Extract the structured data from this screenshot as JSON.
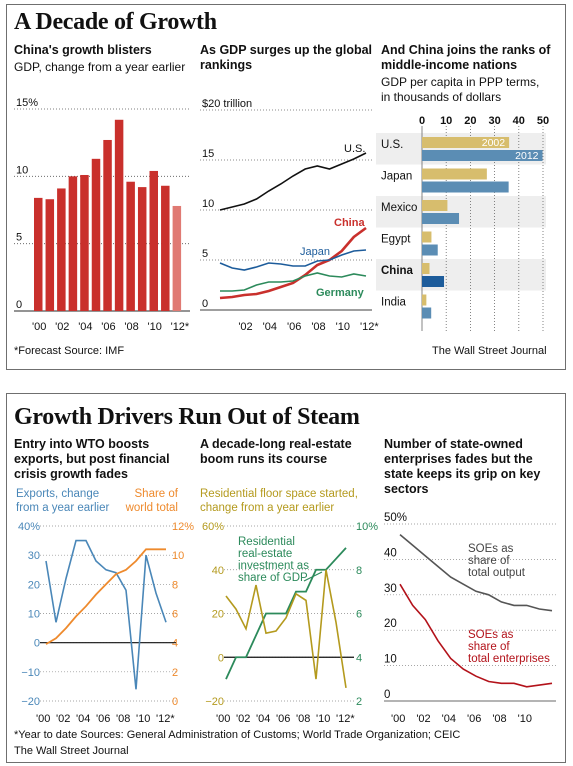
{
  "section1": {
    "title": "A Decade of Growth",
    "source": "*Forecast  Source: IMF",
    "credit": "The Wall Street Journal"
  },
  "section2": {
    "title": "Growth Drivers Run Out of Steam",
    "footnote1": "*Year to date  Sources: General Administration of Customs; World Trade Organization; CEIC",
    "footnote2": "The Wall Street Journal"
  },
  "panels": {
    "p1": {
      "title": "China's growth blisters",
      "subtitle": "GDP, change from a year earlier"
    },
    "p2": {
      "title_l1": "As GDP surges up the global",
      "title_l2": "rankings"
    },
    "p3": {
      "title_l1": "And China joins the ranks of",
      "title_l2": "middle-income nations",
      "sub_l1": "GDP per capita in PPP terms,",
      "sub_l2": "in thousands of dollars"
    },
    "p4": {
      "title_l1": "Entry into WTO boosts",
      "title_l2": "exports, but post financial",
      "title_l3": "crisis growth fades"
    },
    "p5": {
      "title_l1": "A decade-long real-estate",
      "title_l2": "boom runs its course"
    },
    "p6": {
      "title_l1": "Number of state-owned",
      "title_l2": "enterprises fades but the",
      "title_l3": "state keeps its grip on key",
      "title_l4": "sectors"
    }
  },
  "colors": {
    "red": "#c9302c",
    "red_forecast": "#e07a73",
    "gold": "#d7bd6d",
    "steel": "#5b8db4",
    "blue": "#4a87b8",
    "orange": "#ee8a2d",
    "green": "#2c8a5b",
    "olive": "#b49a1e",
    "navy": "#1d5c9b",
    "gray": "#555555",
    "band": "#eeeeee"
  },
  "chart_data": [
    {
      "id": "china-gdp-growth",
      "type": "bar",
      "title": "China's growth blisters",
      "subtitle": "GDP, change from a year earlier",
      "categories": [
        "'00",
        "'01",
        "'02",
        "'03",
        "'04",
        "'05",
        "'06",
        "'07",
        "'08",
        "'09",
        "'10",
        "'11",
        "'12*"
      ],
      "values": [
        8.4,
        8.3,
        9.1,
        10.0,
        10.1,
        11.3,
        12.7,
        14.2,
        9.6,
        9.2,
        10.4,
        9.3,
        7.8
      ],
      "forecast_index": 12,
      "x_tick_labels": [
        "'00",
        "'02",
        "'04",
        "'06",
        "'08",
        "'10",
        "'12*"
      ],
      "y_ticks": [
        0,
        5,
        10,
        15
      ],
      "y_tick_labels": [
        "0",
        "5",
        "10",
        "15%"
      ],
      "ylim": [
        0,
        15
      ]
    },
    {
      "id": "gdp-global-rankings",
      "type": "line",
      "title": "As GDP surges up the global rankings",
      "x": [
        2000,
        2001,
        2002,
        2003,
        2004,
        2005,
        2006,
        2007,
        2008,
        2009,
        2010,
        2011,
        2012
      ],
      "series": [
        {
          "name": "U.S.",
          "values": [
            10.0,
            10.3,
            10.6,
            11.1,
            11.9,
            12.6,
            13.4,
            14.1,
            14.4,
            14.1,
            14.6,
            15.1,
            15.7
          ]
        },
        {
          "name": "China",
          "values": [
            1.2,
            1.3,
            1.5,
            1.6,
            1.9,
            2.3,
            2.7,
            3.5,
            4.5,
            5.0,
            5.9,
            7.3,
            8.2
          ]
        },
        {
          "name": "Japan",
          "values": [
            4.7,
            4.2,
            4.0,
            4.3,
            4.7,
            4.6,
            4.4,
            4.4,
            4.9,
            5.0,
            5.5,
            5.9,
            6.0
          ]
        },
        {
          "name": "Germany",
          "values": [
            1.9,
            1.9,
            2.0,
            2.5,
            2.8,
            2.8,
            2.9,
            3.4,
            3.7,
            3.4,
            3.3,
            3.6,
            3.4
          ]
        }
      ],
      "x_tick_labels": [
        "'02",
        "'04",
        "'06",
        "'08",
        "'10",
        "'12*"
      ],
      "x_tick_values": [
        2002,
        2004,
        2006,
        2008,
        2010,
        2012
      ],
      "y_ticks": [
        0,
        5,
        10,
        15,
        20
      ],
      "y_tick_labels": [
        "0",
        "5",
        "10",
        "15",
        "$20 trillion"
      ],
      "ylim": [
        0,
        20
      ]
    },
    {
      "id": "gdp-per-capita-ppp",
      "type": "bar",
      "orientation": "horizontal",
      "title": "And China joins the ranks of middle-income nations",
      "subtitle": "GDP per capita in PPP terms, in thousands of dollars",
      "categories": [
        "U.S.",
        "Japan",
        "Mexico",
        "Egypt",
        "China",
        "India"
      ],
      "series": [
        {
          "name": "2002",
          "values": [
            36.0,
            26.8,
            10.5,
            3.9,
            3.1,
            1.8
          ]
        },
        {
          "name": "2012",
          "values": [
            49.8,
            35.8,
            15.3,
            6.5,
            9.1,
            3.8
          ]
        }
      ],
      "x_ticks": [
        0,
        10,
        20,
        30,
        40,
        50
      ],
      "xlim": [
        0,
        52
      ]
    },
    {
      "id": "exports-wto",
      "type": "line",
      "title": "Entry into WTO boosts exports, but post financial crisis growth fades",
      "x": [
        2000,
        2001,
        2002,
        2003,
        2004,
        2005,
        2006,
        2007,
        2008,
        2009,
        2010,
        2011,
        2012
      ],
      "series": [
        {
          "name": "Exports, change from a year earlier",
          "axis": "left",
          "values": [
            28,
            7,
            22,
            35,
            35,
            28,
            25,
            24,
            18,
            -16,
            30,
            17,
            7
          ]
        },
        {
          "name": "Share of world total",
          "axis": "right",
          "values": [
            3.9,
            4.3,
            5.0,
            5.8,
            6.5,
            7.3,
            8.0,
            8.7,
            9.0,
            9.6,
            10.4,
            10.4,
            10.4
          ]
        }
      ],
      "left_label": "Exports, change from a year earlier",
      "right_label_l1": "Share of",
      "right_label_l2": "world total",
      "y_left_ticks": [
        -20,
        -10,
        0,
        10,
        20,
        30,
        40
      ],
      "y_left_tick_labels": [
        "−20",
        "−10",
        "0",
        "10",
        "20",
        "30",
        "40%"
      ],
      "ylim_left": [
        -20,
        40
      ],
      "y_right_ticks": [
        0,
        2,
        4,
        6,
        8,
        10,
        12
      ],
      "y_right_tick_labels": [
        "0",
        "2",
        "4",
        "6",
        "8",
        "10",
        "12%"
      ],
      "ylim_right": [
        0,
        12
      ],
      "x_tick_labels": [
        "'00",
        "'02",
        "'04",
        "'06",
        "'08",
        "'10",
        "'12*"
      ]
    },
    {
      "id": "real-estate-boom",
      "type": "line",
      "title": "A decade-long real-estate boom runs its course",
      "x": [
        2000,
        2001,
        2002,
        2003,
        2004,
        2005,
        2006,
        2007,
        2008,
        2009,
        2010,
        2011,
        2012
      ],
      "series": [
        {
          "name": "Residential floor space started, change from a year earlier",
          "axis": "left",
          "values": [
            28,
            22,
            13,
            33,
            11,
            12,
            18,
            29,
            26,
            -10,
            40,
            16,
            -14
          ]
        },
        {
          "name": "Residential real-estate investment as share of GDP",
          "axis": "right",
          "values": [
            3.0,
            4.0,
            4.0,
            5.0,
            6.0,
            6.0,
            6.0,
            7.0,
            7.0,
            8.0,
            8.0,
            8.5,
            9.0
          ]
        }
      ],
      "left_label_l1": "Residential floor space started,",
      "left_label_l2": "change from a year earlier",
      "annotation": [
        "Residential",
        "real-estate",
        "investment as",
        "share of GDP"
      ],
      "y_left_ticks": [
        -20,
        0,
        20,
        40,
        60
      ],
      "y_left_tick_labels": [
        "−20",
        "0",
        "20",
        "40",
        "60%"
      ],
      "ylim_left": [
        -20,
        60
      ],
      "y_right_ticks": [
        2,
        4,
        6,
        8,
        10
      ],
      "y_right_tick_labels": [
        "2",
        "4",
        "6",
        "8",
        "10%"
      ],
      "ylim_right": [
        2,
        10
      ],
      "x_tick_labels": [
        "'00",
        "'02",
        "'04",
        "'06",
        "'08",
        "'10",
        "'12*"
      ]
    },
    {
      "id": "state-owned-enterprises",
      "type": "line",
      "title": "Number of state-owned enterprises fades but the state keeps its grip on key sectors",
      "x": [
        2000,
        2001,
        2002,
        2003,
        2004,
        2005,
        2006,
        2007,
        2008,
        2009,
        2010,
        2011,
        2012
      ],
      "series": [
        {
          "name": "SOEs as share of total output",
          "values": [
            47,
            44,
            41,
            38,
            35,
            33,
            31,
            30,
            28,
            27,
            27,
            26,
            25.5
          ]
        },
        {
          "name": "SOEs as share of total enterprises",
          "values": [
            33,
            27,
            23,
            17,
            12,
            9,
            7,
            5.5,
            5,
            5,
            4,
            4.5,
            5
          ]
        }
      ],
      "label_output": [
        "SOEs as",
        "share of",
        "total output"
      ],
      "label_enterprises": [
        "SOEs as",
        "share of",
        "total enterprises"
      ],
      "y_ticks": [
        0,
        10,
        20,
        30,
        40,
        50
      ],
      "y_tick_labels": [
        "0",
        "10",
        "20",
        "30",
        "40",
        "50%"
      ],
      "ylim": [
        0,
        50
      ],
      "x_tick_labels": [
        "'00",
        "'02",
        "'04",
        "'06",
        "'08",
        "'10"
      ]
    }
  ]
}
